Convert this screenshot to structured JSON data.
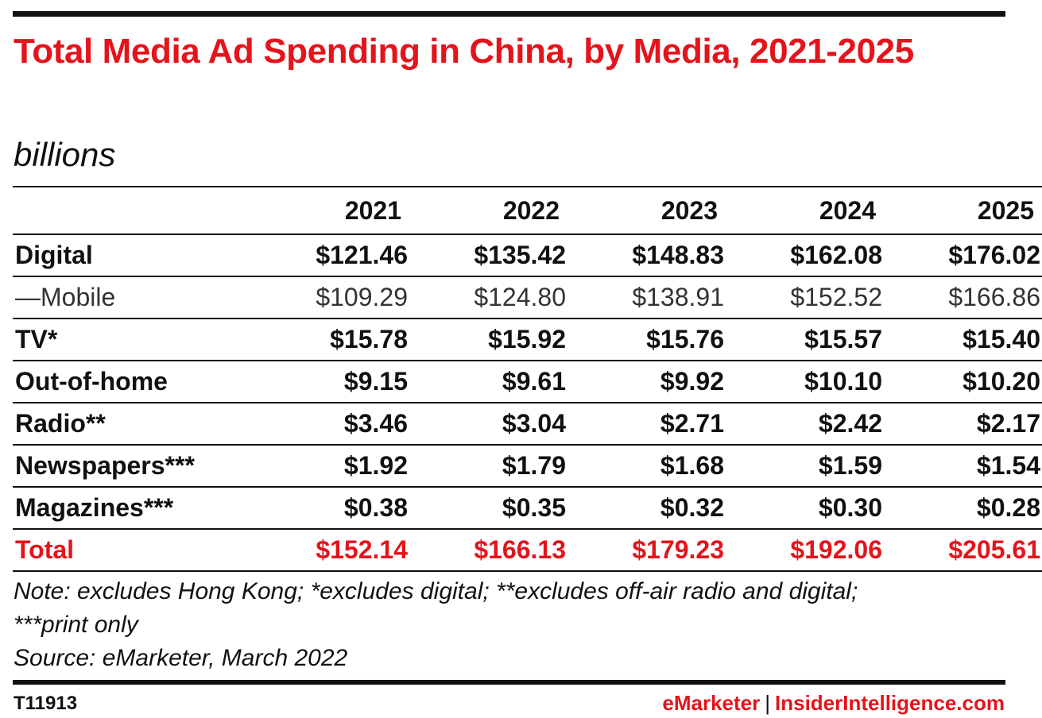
{
  "chart_data": {
    "type": "table",
    "title": "Total Media Ad Spending in China, by Media, 2021-2025",
    "subtitle": "billions",
    "columns": [
      "2021",
      "2022",
      "2023",
      "2024",
      "2025"
    ],
    "rows": [
      {
        "label": "Digital",
        "values": [
          "$121.46",
          "$135.42",
          "$148.83",
          "$162.08",
          "$176.02"
        ],
        "style": "bold"
      },
      {
        "label": "—Mobile",
        "values": [
          "$109.29",
          "$124.80",
          "$138.91",
          "$152.52",
          "$166.86"
        ],
        "style": "sub"
      },
      {
        "label": "TV*",
        "values": [
          "$15.78",
          "$15.92",
          "$15.76",
          "$15.57",
          "$15.40"
        ],
        "style": "bold"
      },
      {
        "label": "Out-of-home",
        "values": [
          "$9.15",
          "$9.61",
          "$9.92",
          "$10.10",
          "$10.20"
        ],
        "style": "bold"
      },
      {
        "label": "Radio**",
        "values": [
          "$3.46",
          "$3.04",
          "$2.71",
          "$2.42",
          "$2.17"
        ],
        "style": "bold"
      },
      {
        "label": "Newspapers***",
        "values": [
          "$1.92",
          "$1.79",
          "$1.68",
          "$1.59",
          "$1.54"
        ],
        "style": "bold"
      },
      {
        "label": "Magazines***",
        "values": [
          "$0.38",
          "$0.35",
          "$0.32",
          "$0.30",
          "$0.28"
        ],
        "style": "bold"
      },
      {
        "label": "Total",
        "values": [
          "$152.14",
          "$166.13",
          "$179.23",
          "$192.06",
          "$205.61"
        ],
        "style": "total"
      }
    ]
  },
  "notes": {
    "line1": "Note: excludes Hong Kong; *excludes digital; **excludes off-air radio and digital;",
    "line2": "***print only",
    "source": "Source: eMarketer, March 2022"
  },
  "footer": {
    "id": "T11913",
    "brand_emarketer": "eMarketer",
    "separator": "|",
    "brand_insider": "InsiderIntelligence.com"
  },
  "colors": {
    "accent": "#e3141b",
    "text": "#111111",
    "sub_text": "#333333",
    "background": "#ffffff"
  }
}
